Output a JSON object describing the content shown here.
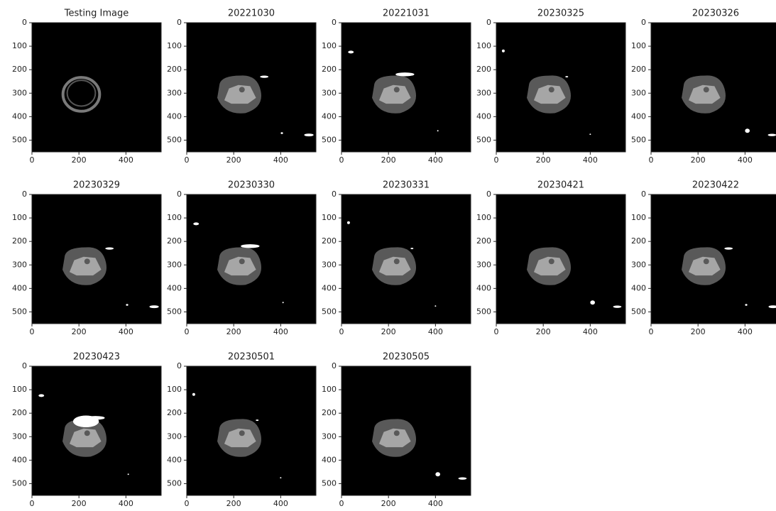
{
  "chart_data": [
    {
      "type": "image",
      "title": "Testing Image",
      "xlim": [
        0,
        550
      ],
      "ylim": [
        550,
        0
      ],
      "xticks": [
        0,
        200,
        400
      ],
      "yticks": [
        0,
        100,
        200,
        300,
        400,
        500
      ]
    },
    {
      "type": "image",
      "title": "20221030",
      "xlim": [
        0,
        550
      ],
      "ylim": [
        550,
        0
      ],
      "xticks": [
        0,
        200,
        400
      ],
      "yticks": [
        0,
        100,
        200,
        300,
        400,
        500
      ]
    },
    {
      "type": "image",
      "title": "20221031",
      "xlim": [
        0,
        550
      ],
      "ylim": [
        550,
        0
      ],
      "xticks": [
        0,
        200,
        400
      ],
      "yticks": [
        0,
        100,
        200,
        300,
        400,
        500
      ]
    },
    {
      "type": "image",
      "title": "20230325",
      "xlim": [
        0,
        550
      ],
      "ylim": [
        550,
        0
      ],
      "xticks": [
        0,
        200,
        400
      ],
      "yticks": [
        0,
        100,
        200,
        300,
        400,
        500
      ]
    },
    {
      "type": "image",
      "title": "20230326",
      "xlim": [
        0,
        550
      ],
      "ylim": [
        550,
        0
      ],
      "xticks": [
        0,
        200,
        400
      ],
      "yticks": [
        0,
        100,
        200,
        300,
        400,
        500
      ]
    },
    {
      "type": "image",
      "title": "20230329",
      "xlim": [
        0,
        550
      ],
      "ylim": [
        550,
        0
      ],
      "xticks": [
        0,
        200,
        400
      ],
      "yticks": [
        0,
        100,
        200,
        300,
        400,
        500
      ]
    },
    {
      "type": "image",
      "title": "20230330",
      "xlim": [
        0,
        550
      ],
      "ylim": [
        550,
        0
      ],
      "xticks": [
        0,
        200,
        400
      ],
      "yticks": [
        0,
        100,
        200,
        300,
        400,
        500
      ]
    },
    {
      "type": "image",
      "title": "20230331",
      "xlim": [
        0,
        550
      ],
      "ylim": [
        550,
        0
      ],
      "xticks": [
        0,
        200,
        400
      ],
      "yticks": [
        0,
        100,
        200,
        300,
        400,
        500
      ]
    },
    {
      "type": "image",
      "title": "20230421",
      "xlim": [
        0,
        550
      ],
      "ylim": [
        550,
        0
      ],
      "xticks": [
        0,
        200,
        400
      ],
      "yticks": [
        0,
        100,
        200,
        300,
        400,
        500
      ]
    },
    {
      "type": "image",
      "title": "20230422",
      "xlim": [
        0,
        550
      ],
      "ylim": [
        550,
        0
      ],
      "xticks": [
        0,
        200,
        400
      ],
      "yticks": [
        0,
        100,
        200,
        300,
        400,
        500
      ]
    },
    {
      "type": "image",
      "title": "20230423",
      "xlim": [
        0,
        550
      ],
      "ylim": [
        550,
        0
      ],
      "xticks": [
        0,
        200,
        400
      ],
      "yticks": [
        0,
        100,
        200,
        300,
        400,
        500
      ]
    },
    {
      "type": "image",
      "title": "20230501",
      "xlim": [
        0,
        550
      ],
      "ylim": [
        550,
        0
      ],
      "xticks": [
        0,
        200,
        400
      ],
      "yticks": [
        0,
        100,
        200,
        300,
        400,
        500
      ]
    },
    {
      "type": "image",
      "title": "20230505",
      "xlim": [
        0,
        550
      ],
      "ylim": [
        550,
        0
      ],
      "xticks": [
        0,
        200,
        400
      ],
      "yticks": [
        0,
        100,
        200,
        300,
        400,
        500
      ]
    }
  ]
}
